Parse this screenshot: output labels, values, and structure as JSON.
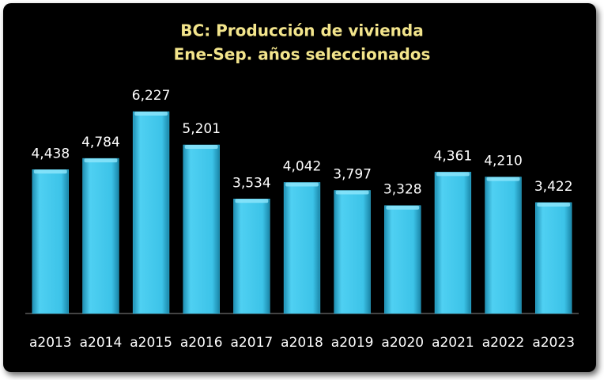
{
  "chart_data": {
    "type": "bar",
    "title": "BC: Producción de vivienda",
    "subtitle": "Ene-Sep. años seleccionados",
    "categories": [
      "a2013",
      "a2014",
      "a2015",
      "a2016",
      "a2017",
      "a2018",
      "a2019",
      "a2020",
      "a2021",
      "a2022",
      "a2023"
    ],
    "values": [
      4438,
      4784,
      6227,
      5201,
      3534,
      4042,
      3797,
      3328,
      4361,
      4210,
      3422
    ],
    "value_labels": [
      "4,438",
      "4,784",
      "6,227",
      "5,201",
      "3,534",
      "4,042",
      "3,797",
      "3,328",
      "4,361",
      "4,210",
      "3,422"
    ],
    "color": "#38bde3"
  }
}
